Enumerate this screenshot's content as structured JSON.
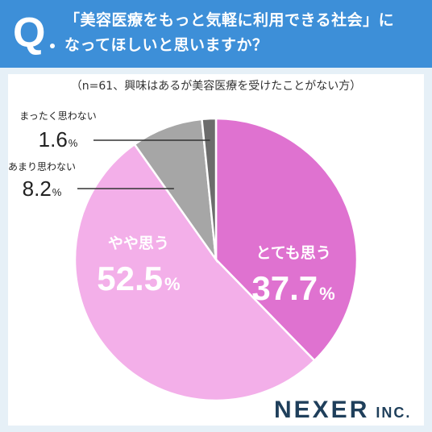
{
  "header": {
    "q_mark": "Q",
    "question_line1": "「美容医療をもっと気軽に利用できる社会」に",
    "question_line2": "なってほしいと思いますか？"
  },
  "subtitle": "（n=61、興味はあるが美容医療を受けたことがない方）",
  "chart_data": {
    "type": "pie",
    "start": "12 o'clock",
    "direction": "clockwise",
    "slices": [
      {
        "label": "とても思う",
        "value": 37.7,
        "color": "#df72d0"
      },
      {
        "label": "やや思う",
        "value": 52.5,
        "color": "#f3afe9"
      },
      {
        "label": "あまり思わない",
        "value": 8.2,
        "color": "#a6a6a6"
      },
      {
        "label": "まったく思わない",
        "value": 1.6,
        "color": "#6c6c6c"
      }
    ],
    "unit": "%",
    "separator_color": "#ffffff"
  },
  "logo": {
    "main": "NEXER",
    "suffix": "INC."
  }
}
